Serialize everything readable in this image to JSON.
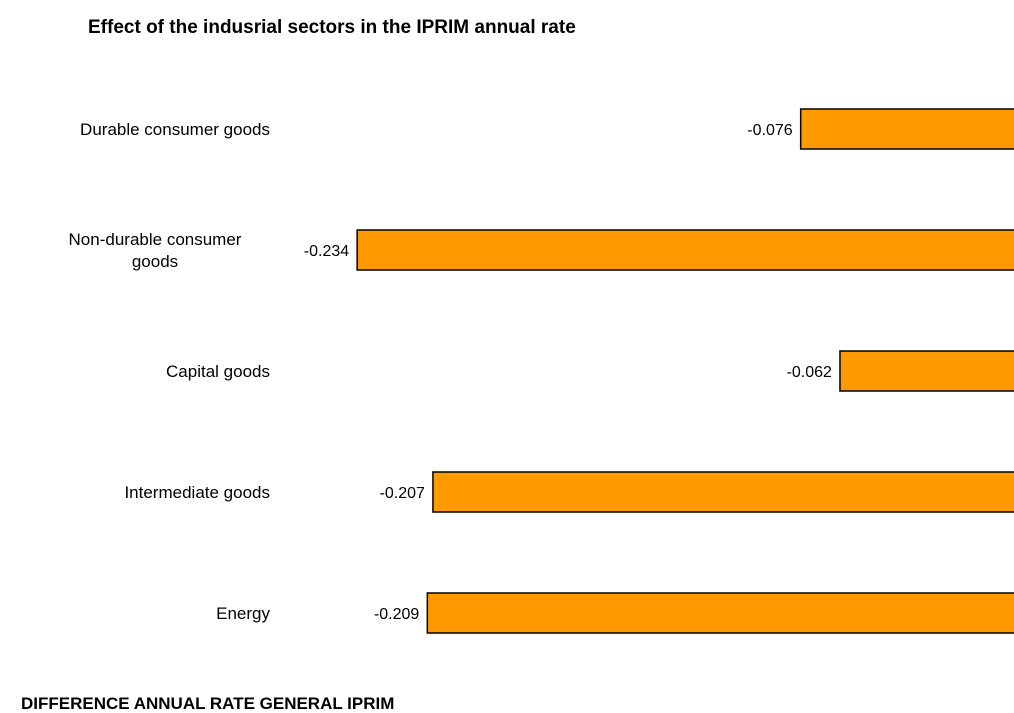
{
  "chart_data": {
    "type": "bar",
    "orientation": "horizontal",
    "title": "Effect of the indusrial sectors in the IPRIM annual rate",
    "categories": [
      [
        "Durable consumer goods"
      ],
      [
        "Non-durable consumer",
        "goods"
      ],
      [
        "Capital goods"
      ],
      [
        "Intermediate goods"
      ],
      [
        "Energy"
      ]
    ],
    "values": [
      -0.076,
      -0.234,
      -0.062,
      -0.207,
      -0.209
    ],
    "value_labels": [
      "-0.076",
      "-0.234",
      "-0.062",
      "-0.207",
      "-0.209"
    ],
    "bar_color": "#FF9900",
    "grid": false,
    "legend": "none"
  },
  "footer": {
    "label": "DIFFERENCE ANNUAL RATE GENERAL IPRIM"
  }
}
